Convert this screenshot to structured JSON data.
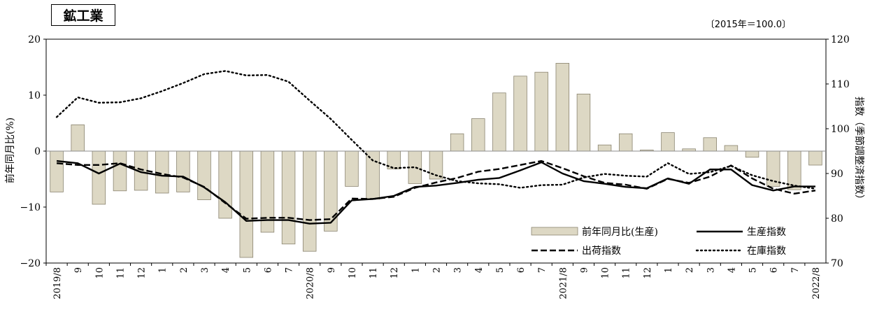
{
  "chart_data": {
    "type": "bar+line",
    "title": "鉱工業",
    "base_note": "〔2015年＝100.0〕",
    "ylabel_left": "前年同月比(%)",
    "ylabel_right": "指数（季節調整済指数）",
    "ylim_left": [
      -20,
      20
    ],
    "ylim_right": [
      70,
      120
    ],
    "yticks_left": [
      "20",
      "10",
      "0",
      "−10",
      "−20"
    ],
    "yticks_right": [
      "120",
      "110",
      "100",
      "90",
      "80",
      "70"
    ],
    "categories": [
      "2019/8",
      "9",
      "10",
      "11",
      "12",
      "1",
      "2",
      "3",
      "4",
      "5",
      "6",
      "7",
      "2020/8",
      "9",
      "10",
      "11",
      "12",
      "1",
      "2",
      "3",
      "4",
      "5",
      "6",
      "7",
      "2021/8",
      "9",
      "10",
      "11",
      "12",
      "1",
      "2",
      "3",
      "4",
      "5",
      "6",
      "7",
      "2022/8"
    ],
    "bar_series": {
      "name": "前年同月比(生産)",
      "color": "#ddd8c4",
      "values": [
        -7.3,
        4.7,
        -9.5,
        -7.1,
        -7.0,
        -7.5,
        -7.3,
        -8.7,
        -12.0,
        -19.0,
        -14.5,
        -16.6,
        -17.9,
        -14.3,
        -6.3,
        -8.6,
        -3.2,
        -5.8,
        -5.0,
        3.1,
        5.8,
        10.4,
        13.4,
        14.1,
        15.7,
        10.2,
        1.1,
        3.1,
        0.2,
        3.3,
        0.4,
        2.4,
        1.0,
        -1.1,
        -6.3,
        -6.9,
        -2.5
      ]
    },
    "line_series": [
      {
        "name": "生産指数",
        "style": "solid",
        "values": [
          92.8,
          92.3,
          90.0,
          92.2,
          90.3,
          89.5,
          89.3,
          86.9,
          83.6,
          79.4,
          79.6,
          79.6,
          78.8,
          79.0,
          84.0,
          84.3,
          85.0,
          87.0,
          87.3,
          87.9,
          88.6,
          89.0,
          90.7,
          92.5,
          90.0,
          88.3,
          87.7,
          87.0,
          86.7,
          88.9,
          87.7,
          90.9,
          90.9,
          87.4,
          86.2,
          87.1,
          87.1
        ]
      },
      {
        "name": "出荷指数",
        "style": "dashed",
        "values": [
          92.3,
          91.9,
          91.9,
          92.3,
          90.9,
          89.9,
          89.1,
          87.0,
          83.4,
          79.9,
          80.1,
          80.1,
          79.6,
          79.8,
          84.4,
          84.3,
          84.8,
          86.8,
          88.0,
          89.0,
          90.4,
          91.0,
          91.9,
          92.8,
          91.2,
          89.4,
          87.9,
          87.5,
          86.6,
          88.8,
          87.9,
          89.3,
          91.8,
          88.9,
          86.6,
          85.5,
          86.2
        ]
      },
      {
        "name": "在庫指数",
        "style": "dotted",
        "values": [
          102.6,
          107.0,
          105.8,
          105.9,
          106.8,
          108.4,
          110.2,
          112.2,
          112.9,
          111.9,
          112.0,
          110.5,
          106.3,
          102.2,
          97.5,
          92.9,
          91.2,
          91.4,
          89.6,
          88.3,
          87.8,
          87.6,
          86.8,
          87.4,
          87.5,
          89.1,
          89.9,
          89.5,
          89.3,
          92.3,
          89.9,
          90.3,
          91.7,
          89.6,
          88.3,
          87.3,
          86.6
        ]
      }
    ],
    "legend_position": "bottom-right"
  }
}
